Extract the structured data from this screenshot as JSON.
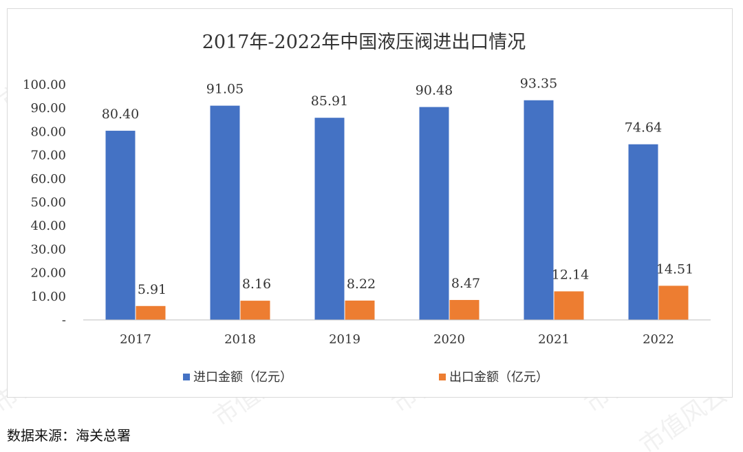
{
  "chart_data": {
    "type": "bar",
    "title": "2017年-2022年中国液压阀进出口情况",
    "categories": [
      "2017",
      "2018",
      "2019",
      "2020",
      "2021",
      "2022"
    ],
    "series": [
      {
        "name": "进口金额（亿元）",
        "values": [
          80.4,
          91.05,
          85.91,
          90.48,
          93.35,
          74.64
        ],
        "labels": [
          "80.40",
          "91.05",
          "85.91",
          "90.48",
          "93.35",
          "74.64"
        ],
        "color": "#4472C4"
      },
      {
        "name": "出口金额（亿元）",
        "values": [
          5.91,
          8.16,
          8.22,
          8.47,
          12.14,
          14.51
        ],
        "labels": [
          "5.91",
          "8.16",
          "8.22",
          "8.47",
          "12.14",
          "14.51"
        ],
        "color": "#ED7D31"
      }
    ],
    "yticks": [
      "-",
      "10.00",
      "20.00",
      "30.00",
      "40.00",
      "50.00",
      "60.00",
      "70.00",
      "80.00",
      "90.00",
      "100.00"
    ],
    "ylim": [
      0,
      100
    ],
    "grid": false,
    "legend": "bottom"
  },
  "source": "数据来源：海关总署",
  "watermark": "市值风云"
}
